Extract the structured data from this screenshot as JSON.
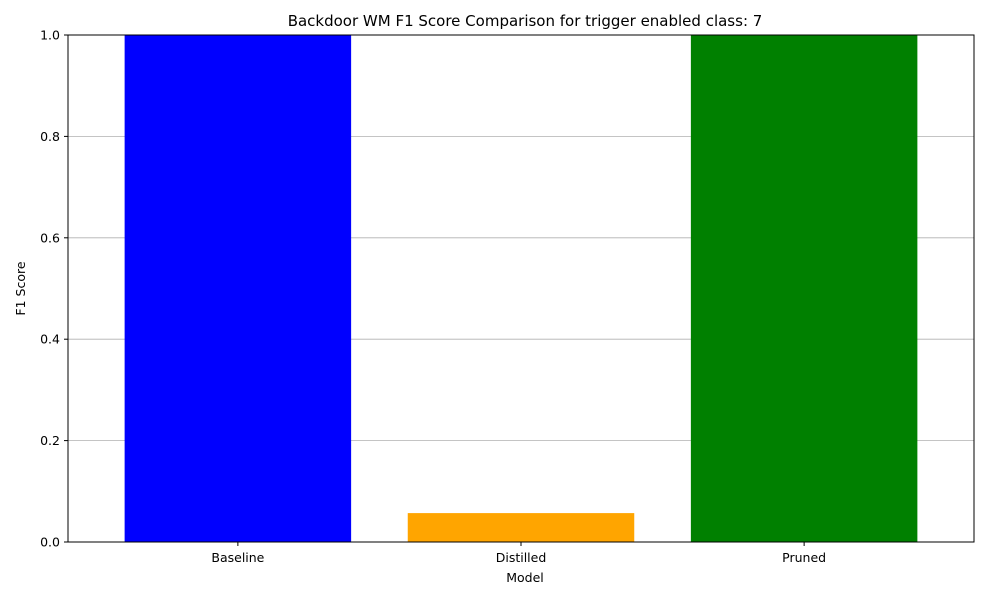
{
  "chart_data": {
    "type": "bar",
    "title": "Backdoor WM F1 Score Comparison for trigger enabled class: 7",
    "xlabel": "Model",
    "ylabel": "F1 Score",
    "categories": [
      "Baseline",
      "Distilled",
      "Pruned"
    ],
    "values": [
      1.0,
      0.057,
      1.0
    ],
    "colors": [
      "#0000ff",
      "#ffa500",
      "#008000"
    ],
    "ylim": [
      0,
      1.0
    ],
    "yticks": [
      0.0,
      0.2,
      0.4,
      0.6,
      0.8,
      1.0
    ],
    "ytick_labels": [
      "0.0",
      "0.2",
      "0.4",
      "0.6",
      "0.8",
      "1.0"
    ],
    "grid": "y-axis horizontal gridlines",
    "legend": "none"
  }
}
